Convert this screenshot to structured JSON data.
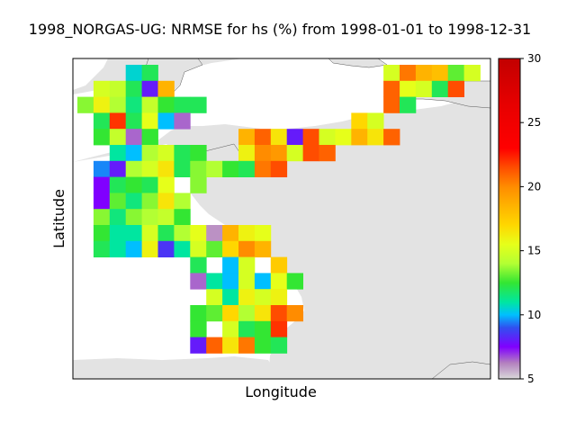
{
  "chart_data": {
    "type": "heatmap",
    "title": "1998_NORGAS-UG: NRMSE for hs (%) from 1998-01-01 to 1998-12-31",
    "xlabel": "Longitude",
    "ylabel": "Latitude",
    "colorbar": {
      "min": 5,
      "max": 30,
      "ticks": [
        5,
        10,
        15,
        20,
        25,
        30
      ],
      "colormap": "gist_ncar-like (grey-purple-blue-cyan-green-yellow-orange-red)"
    },
    "grid_columns": 25,
    "grid_rows": 19,
    "cells": [
      {
        "row": 0,
        "col": 3,
        "value": 10.5
      },
      {
        "row": 0,
        "col": 4,
        "value": 12
      },
      {
        "row": 0,
        "col": 19,
        "value": 15
      },
      {
        "row": 0,
        "col": 20,
        "value": 20.5
      },
      {
        "row": 0,
        "col": 21,
        "value": 18.5
      },
      {
        "row": 0,
        "col": 22,
        "value": 18
      },
      {
        "row": 0,
        "col": 23,
        "value": 13
      },
      {
        "row": 0,
        "col": 24,
        "value": 15
      },
      {
        "row": 1,
        "col": 1,
        "value": 15
      },
      {
        "row": 1,
        "col": 2,
        "value": 14.5
      },
      {
        "row": 1,
        "col": 3,
        "value": 12
      },
      {
        "row": 1,
        "col": 4,
        "value": 8
      },
      {
        "row": 1,
        "col": 5,
        "value": 18.5
      },
      {
        "row": 1,
        "col": 19,
        "value": 21
      },
      {
        "row": 1,
        "col": 20,
        "value": 15.5
      },
      {
        "row": 1,
        "col": 21,
        "value": 15
      },
      {
        "row": 1,
        "col": 22,
        "value": 12
      },
      {
        "row": 1,
        "col": 23,
        "value": 21.5
      },
      {
        "row": 2,
        "col": 0,
        "value": 13.5
      },
      {
        "row": 2,
        "col": 1,
        "value": 16
      },
      {
        "row": 2,
        "col": 2,
        "value": 14
      },
      {
        "row": 2,
        "col": 3,
        "value": 11.5
      },
      {
        "row": 2,
        "col": 4,
        "value": 14.5
      },
      {
        "row": 2,
        "col": 5,
        "value": 12.5
      },
      {
        "row": 2,
        "col": 6,
        "value": 12
      },
      {
        "row": 2,
        "col": 7,
        "value": 12
      },
      {
        "row": 2,
        "col": 19,
        "value": 21
      },
      {
        "row": 2,
        "col": 20,
        "value": 12
      },
      {
        "row": 3,
        "col": 1,
        "value": 12
      },
      {
        "row": 3,
        "col": 2,
        "value": 22
      },
      {
        "row": 3,
        "col": 3,
        "value": 12
      },
      {
        "row": 3,
        "col": 4,
        "value": 15.5
      },
      {
        "row": 3,
        "col": 5,
        "value": 10
      },
      {
        "row": 3,
        "col": 6,
        "value": 6.5
      },
      {
        "row": 3,
        "col": 17,
        "value": 17
      },
      {
        "row": 3,
        "col": 18,
        "value": 15
      },
      {
        "row": 4,
        "col": 1,
        "value": 12.5
      },
      {
        "row": 4,
        "col": 2,
        "value": 14.5
      },
      {
        "row": 4,
        "col": 3,
        "value": 6.5
      },
      {
        "row": 4,
        "col": 4,
        "value": 12.5
      },
      {
        "row": 4,
        "col": 10,
        "value": 18.5
      },
      {
        "row": 4,
        "col": 11,
        "value": 21
      },
      {
        "row": 4,
        "col": 12,
        "value": 16.5
      },
      {
        "row": 4,
        "col": 13,
        "value": 8
      },
      {
        "row": 4,
        "col": 14,
        "value": 21.5
      },
      {
        "row": 4,
        "col": 15,
        "value": 15
      },
      {
        "row": 4,
        "col": 16,
        "value": 15.5
      },
      {
        "row": 4,
        "col": 17,
        "value": 18.5
      },
      {
        "row": 4,
        "col": 18,
        "value": 16.5
      },
      {
        "row": 4,
        "col": 19,
        "value": 21
      },
      {
        "row": 5,
        "col": 2,
        "value": 11
      },
      {
        "row": 5,
        "col": 3,
        "value": 10
      },
      {
        "row": 5,
        "col": 4,
        "value": 14
      },
      {
        "row": 5,
        "col": 5,
        "value": 15
      },
      {
        "row": 5,
        "col": 6,
        "value": 12
      },
      {
        "row": 5,
        "col": 7,
        "value": 12.5
      },
      {
        "row": 5,
        "col": 10,
        "value": 16
      },
      {
        "row": 5,
        "col": 11,
        "value": 20
      },
      {
        "row": 5,
        "col": 12,
        "value": 19.5
      },
      {
        "row": 5,
        "col": 13,
        "value": 15
      },
      {
        "row": 5,
        "col": 14,
        "value": 21.5
      },
      {
        "row": 5,
        "col": 15,
        "value": 21
      },
      {
        "row": 6,
        "col": 1,
        "value": 9.5
      },
      {
        "row": 6,
        "col": 2,
        "value": 8
      },
      {
        "row": 6,
        "col": 3,
        "value": 14
      },
      {
        "row": 6,
        "col": 4,
        "value": 15
      },
      {
        "row": 6,
        "col": 5,
        "value": 16.5
      },
      {
        "row": 6,
        "col": 6,
        "value": 12
      },
      {
        "row": 6,
        "col": 7,
        "value": 13.5
      },
      {
        "row": 6,
        "col": 8,
        "value": 14
      },
      {
        "row": 6,
        "col": 9,
        "value": 12.5
      },
      {
        "row": 6,
        "col": 10,
        "value": 12
      },
      {
        "row": 6,
        "col": 11,
        "value": 20.5
      },
      {
        "row": 6,
        "col": 12,
        "value": 21.5
      },
      {
        "row": 7,
        "col": 1,
        "value": 7.5
      },
      {
        "row": 7,
        "col": 2,
        "value": 12
      },
      {
        "row": 7,
        "col": 3,
        "value": 12.5
      },
      {
        "row": 7,
        "col": 4,
        "value": 12
      },
      {
        "row": 7,
        "col": 5,
        "value": 15.5
      },
      {
        "row": 7,
        "col": 7,
        "value": 13.5
      },
      {
        "row": 8,
        "col": 1,
        "value": 7.5
      },
      {
        "row": 8,
        "col": 2,
        "value": 13
      },
      {
        "row": 8,
        "col": 3,
        "value": 11.5
      },
      {
        "row": 8,
        "col": 4,
        "value": 13.5
      },
      {
        "row": 8,
        "col": 5,
        "value": 16.5
      },
      {
        "row": 8,
        "col": 6,
        "value": 14
      },
      {
        "row": 9,
        "col": 1,
        "value": 13.5
      },
      {
        "row": 9,
        "col": 2,
        "value": 11.5
      },
      {
        "row": 9,
        "col": 3,
        "value": 13.5
      },
      {
        "row": 9,
        "col": 4,
        "value": 14
      },
      {
        "row": 9,
        "col": 5,
        "value": 14.5
      },
      {
        "row": 9,
        "col": 6,
        "value": 12.5
      },
      {
        "row": 10,
        "col": 1,
        "value": 12.5
      },
      {
        "row": 10,
        "col": 2,
        "value": 11
      },
      {
        "row": 10,
        "col": 3,
        "value": 11
      },
      {
        "row": 10,
        "col": 4,
        "value": 15
      },
      {
        "row": 10,
        "col": 5,
        "value": 12
      },
      {
        "row": 10,
        "col": 6,
        "value": 14
      },
      {
        "row": 10,
        "col": 7,
        "value": 15.5
      },
      {
        "row": 10,
        "col": 8,
        "value": 6
      },
      {
        "row": 10,
        "col": 9,
        "value": 18.5
      },
      {
        "row": 10,
        "col": 10,
        "value": 16
      },
      {
        "row": 10,
        "col": 11,
        "value": 15.5
      },
      {
        "row": 11,
        "col": 1,
        "value": 12
      },
      {
        "row": 11,
        "col": 2,
        "value": 11
      },
      {
        "row": 11,
        "col": 3,
        "value": 10
      },
      {
        "row": 11,
        "col": 4,
        "value": 16
      },
      {
        "row": 11,
        "col": 5,
        "value": 8.5
      },
      {
        "row": 11,
        "col": 6,
        "value": 11
      },
      {
        "row": 11,
        "col": 7,
        "value": 15
      },
      {
        "row": 11,
        "col": 8,
        "value": 13
      },
      {
        "row": 11,
        "col": 9,
        "value": 17
      },
      {
        "row": 11,
        "col": 10,
        "value": 20
      },
      {
        "row": 11,
        "col": 11,
        "value": 18.5
      },
      {
        "row": 12,
        "col": 7,
        "value": 12
      },
      {
        "row": 12,
        "col": 9,
        "value": 10
      },
      {
        "row": 12,
        "col": 10,
        "value": 15
      },
      {
        "row": 12,
        "col": 12,
        "value": 17.5
      },
      {
        "row": 13,
        "col": 7,
        "value": 6.5
      },
      {
        "row": 13,
        "col": 8,
        "value": 11
      },
      {
        "row": 13,
        "col": 9,
        "value": 10
      },
      {
        "row": 13,
        "col": 10,
        "value": 15
      },
      {
        "row": 13,
        "col": 11,
        "value": 10
      },
      {
        "row": 13,
        "col": 12,
        "value": 15.5
      },
      {
        "row": 13,
        "col": 13,
        "value": 12.5
      },
      {
        "row": 14,
        "col": 8,
        "value": 15
      },
      {
        "row": 14,
        "col": 9,
        "value": 11
      },
      {
        "row": 14,
        "col": 10,
        "value": 16
      },
      {
        "row": 14,
        "col": 11,
        "value": 15
      },
      {
        "row": 14,
        "col": 12,
        "value": 16
      },
      {
        "row": 15,
        "col": 7,
        "value": 12.5
      },
      {
        "row": 15,
        "col": 8,
        "value": 13
      },
      {
        "row": 15,
        "col": 9,
        "value": 17
      },
      {
        "row": 15,
        "col": 10,
        "value": 14
      },
      {
        "row": 15,
        "col": 11,
        "value": 16.5
      },
      {
        "row": 15,
        "col": 12,
        "value": 21.5
      },
      {
        "row": 15,
        "col": 13,
        "value": 20
      },
      {
        "row": 16,
        "col": 7,
        "value": 12.5
      },
      {
        "row": 16,
        "col": 9,
        "value": 15
      },
      {
        "row": 16,
        "col": 10,
        "value": 12
      },
      {
        "row": 16,
        "col": 11,
        "value": 12.5
      },
      {
        "row": 16,
        "col": 12,
        "value": 22
      },
      {
        "row": 17,
        "col": 7,
        "value": 8
      },
      {
        "row": 17,
        "col": 8,
        "value": 21
      },
      {
        "row": 17,
        "col": 9,
        "value": 16.5
      },
      {
        "row": 17,
        "col": 10,
        "value": 20.5
      },
      {
        "row": 17,
        "col": 11,
        "value": 12.5
      },
      {
        "row": 17,
        "col": 12,
        "value": 12
      }
    ]
  }
}
